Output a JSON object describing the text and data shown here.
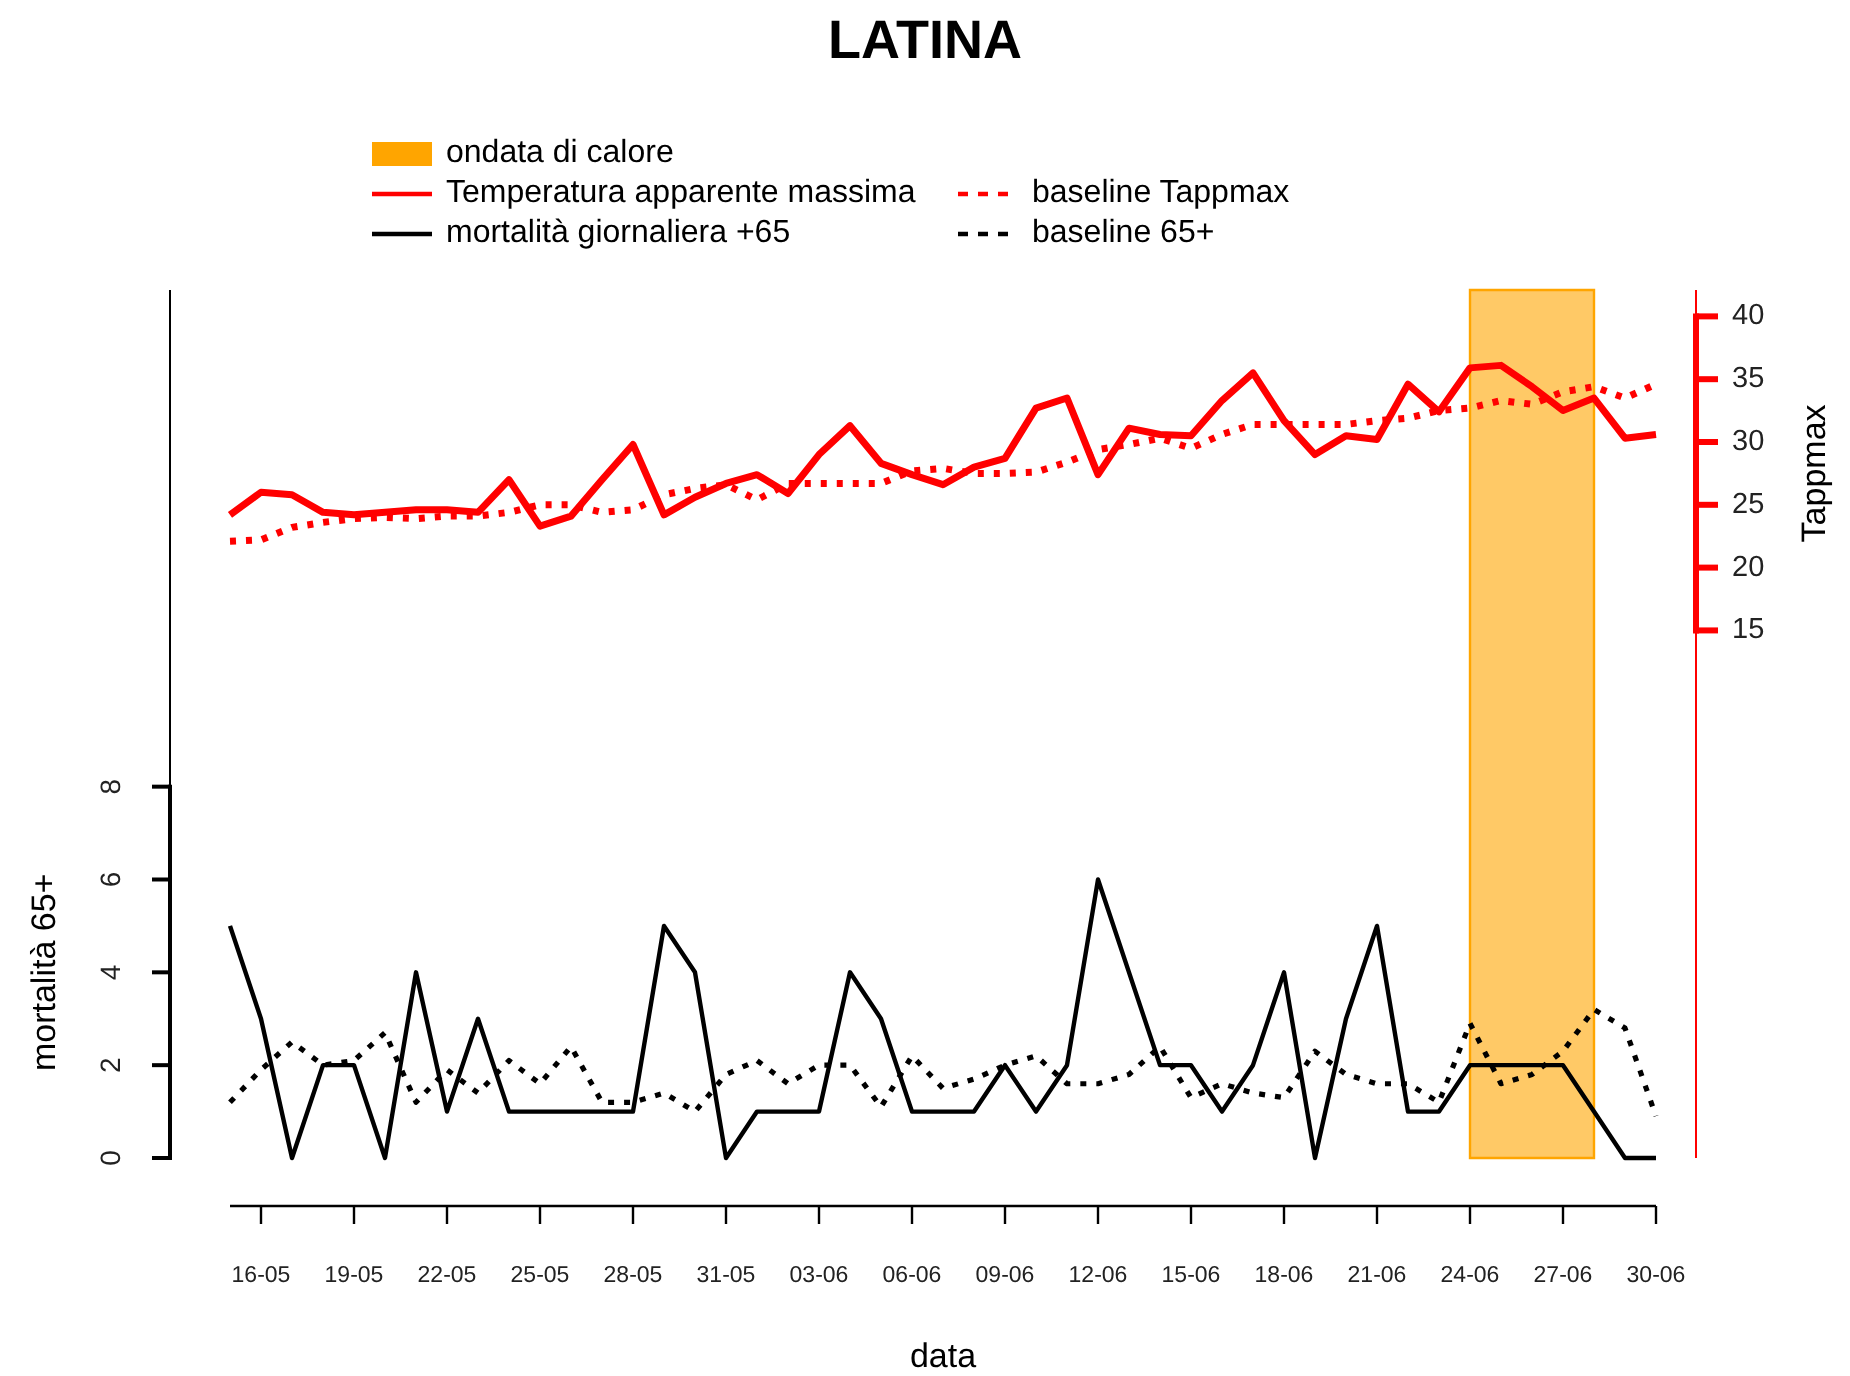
{
  "chart_data": {
    "type": "line",
    "title": "LATINA",
    "xlabel": "data",
    "ylabel": "mortalità 65+",
    "y2label": "Tappmax",
    "legend": "top",
    "x": [
      "--05-15",
      "--05-16",
      "--05-17",
      "--05-18",
      "--05-19",
      "--05-20",
      "--05-21",
      "--05-22",
      "--05-23",
      "--05-24",
      "--05-25",
      "--05-26",
      "--05-27",
      "--05-28",
      "--05-29",
      "--05-30",
      "--05-31",
      "--06-01",
      "--06-02",
      "--06-03",
      "--06-04",
      "--06-05",
      "--06-06",
      "--06-07",
      "--06-08",
      "--06-09",
      "--06-10",
      "--06-11",
      "--06-12",
      "--06-13",
      "--06-14",
      "--06-15",
      "--06-16",
      "--06-17",
      "--06-18",
      "--06-19",
      "--06-20",
      "--06-21",
      "--06-22",
      "--06-23",
      "--06-24",
      "--06-25",
      "--06-26",
      "--06-27",
      "--06-28",
      "--06-29",
      "--06-30"
    ],
    "xlim": [
      "--05-15",
      "--06-30"
    ],
    "xticks": [
      {
        "value": "--05-16",
        "label": "16-05"
      },
      {
        "value": "--05-19",
        "label": "19-05"
      },
      {
        "value": "--05-22",
        "label": "22-05"
      },
      {
        "value": "--05-25",
        "label": "25-05"
      },
      {
        "value": "--05-28",
        "label": "28-05"
      },
      {
        "value": "--05-31",
        "label": "31-05"
      },
      {
        "value": "--06-03",
        "label": "03-06"
      },
      {
        "value": "--06-06",
        "label": "06-06"
      },
      {
        "value": "--06-09",
        "label": "09-06"
      },
      {
        "value": "--06-12",
        "label": "12-06"
      },
      {
        "value": "--06-15",
        "label": "15-06"
      },
      {
        "value": "--06-18",
        "label": "18-06"
      },
      {
        "value": "--06-21",
        "label": "21-06"
      },
      {
        "value": "--06-24",
        "label": "24-06"
      },
      {
        "value": "--06-27",
        "label": "27-06"
      },
      {
        "value": "--06-30",
        "label": "30-06"
      }
    ],
    "ylim": [
      0,
      18.7
    ],
    "yticks": [
      0,
      2,
      4,
      6,
      8
    ],
    "y2lim": [
      -27,
      42.1
    ],
    "y2ticks": [
      15,
      20,
      25,
      30,
      35,
      40
    ],
    "series": [
      {
        "name": "Temperatura apparente massima",
        "color": "#ff0000",
        "axis": "y2",
        "line_style": "solid",
        "values": [
          24.2,
          26.0,
          25.8,
          24.4,
          24.2,
          24.4,
          24.6,
          24.6,
          24.4,
          27.0,
          23.3,
          24.1,
          27.0,
          29.8,
          24.2,
          25.6,
          26.7,
          27.4,
          25.9,
          29.0,
          31.3,
          28.3,
          27.4,
          26.6,
          28.0,
          28.7,
          32.7,
          33.5,
          27.4,
          31.1,
          30.6,
          30.5,
          33.3,
          35.5,
          31.7,
          29.0,
          30.5,
          30.2,
          34.6,
          32.4,
          35.9,
          36.1,
          34.4,
          32.5,
          33.5,
          30.3,
          30.6
        ]
      },
      {
        "name": "baseline Tappmax",
        "color": "#ff0000",
        "axis": "y2",
        "line_style": "dotted",
        "values": [
          22.1,
          22.2,
          23.2,
          23.6,
          23.9,
          24.0,
          23.9,
          24.1,
          24.1,
          24.4,
          25.0,
          25.0,
          24.4,
          24.6,
          25.8,
          26.3,
          26.6,
          25.4,
          26.7,
          26.7,
          26.7,
          26.7,
          27.7,
          27.9,
          27.5,
          27.5,
          27.6,
          28.4,
          29.4,
          29.8,
          30.3,
          29.5,
          30.6,
          31.4,
          31.4,
          31.4,
          31.4,
          31.7,
          31.9,
          32.5,
          32.7,
          33.3,
          33.0,
          34.0,
          34.4,
          33.5,
          34.6
        ]
      },
      {
        "name": "mortalità giornaliera +65",
        "color": "#000000",
        "axis": "y",
        "line_style": "solid",
        "values": [
          5,
          3,
          0,
          2,
          2,
          0,
          4,
          1,
          3,
          1,
          1,
          1,
          1,
          1,
          5,
          4,
          0,
          1,
          1,
          1,
          4,
          3,
          1,
          1,
          1,
          2,
          1,
          2,
          6,
          4,
          2,
          2,
          1,
          2,
          4,
          0,
          3,
          5,
          1,
          1,
          2,
          2,
          2,
          2,
          1,
          0,
          0
        ]
      },
      {
        "name": "baseline 65+",
        "color": "#000000",
        "axis": "y",
        "line_style": "dotted",
        "values": [
          1.2,
          1.9,
          2.5,
          2.0,
          2.1,
          2.7,
          1.2,
          1.9,
          1.4,
          2.1,
          1.6,
          2.4,
          1.2,
          1.2,
          1.4,
          1.0,
          1.8,
          2.1,
          1.6,
          2.0,
          2.0,
          1.1,
          2.2,
          1.5,
          1.7,
          2.0,
          2.2,
          1.6,
          1.6,
          1.8,
          2.4,
          1.3,
          1.6,
          1.4,
          1.3,
          2.3,
          1.8,
          1.6,
          1.6,
          1.2,
          2.9,
          1.6,
          1.8,
          2.3,
          3.2,
          2.8,
          0.9
        ]
      }
    ],
    "bands": [
      {
        "axis": "x",
        "from": "--06-24",
        "to": "--06-28",
        "label": "ondata di calore",
        "color": "#ffa500"
      }
    ]
  }
}
